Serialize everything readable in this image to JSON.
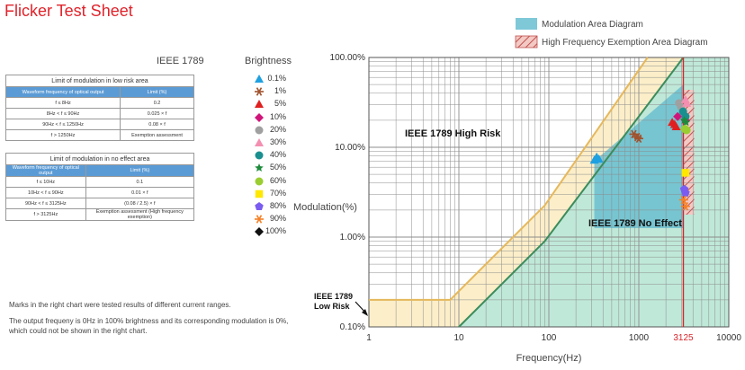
{
  "title": "Flicker Test Sheet",
  "ieee_label": "IEEE 1789",
  "table_low_risk": {
    "section": "Limit of modulation in low risk area",
    "headers": [
      "Waveform frequency of optical output",
      "Limit (%)"
    ],
    "rows": [
      [
        "f ≤ 8Hz",
        "0.2"
      ],
      [
        "8Hz < f ≤ 90Hz",
        "0.025 × f"
      ],
      [
        "90Hz < f ≤ 1250Hz",
        "0.08 × f"
      ],
      [
        "f > 1250Hz",
        "Exemption assessment"
      ]
    ]
  },
  "table_no_effect": {
    "section": "Limit of modulation in no effect area",
    "headers": [
      "Waveform frequency of optical output",
      "Limit (%)"
    ],
    "rows": [
      [
        "f ≤ 10Hz",
        "0.1"
      ],
      [
        "10Hz < f ≤ 90Hz",
        "0.01 × f"
      ],
      [
        "90Hz < f ≤ 3125Hz",
        "(0.08 / 2.5) × f"
      ],
      [
        "f > 3125Hz",
        "Exemption assessment (High frequency exemption)"
      ]
    ]
  },
  "brightness_legend": {
    "title": "Brightness",
    "items": [
      {
        "label": "0.1%",
        "color": "#1fa0e0",
        "shape": "triangle"
      },
      {
        "label": "1%",
        "color": "#a0522d",
        "shape": "asterisk"
      },
      {
        "label": "5%",
        "color": "#e02020",
        "shape": "triangle"
      },
      {
        "label": "10%",
        "color": "#d0157a",
        "shape": "diamond"
      },
      {
        "label": "20%",
        "color": "#a0a0a0",
        "shape": "circle"
      },
      {
        "label": "30%",
        "color": "#f48fb1",
        "shape": "triangle"
      },
      {
        "label": "40%",
        "color": "#1b8f8f",
        "shape": "circle"
      },
      {
        "label": "50%",
        "color": "#1e8a3c",
        "shape": "star"
      },
      {
        "label": "60%",
        "color": "#9acd32",
        "shape": "circle"
      },
      {
        "label": "70%",
        "color": "#ffe800",
        "shape": "square"
      },
      {
        "label": "80%",
        "color": "#7b5cf0",
        "shape": "pentagon"
      },
      {
        "label": "90%",
        "color": "#f58025",
        "shape": "asterisk"
      },
      {
        "label": "100%",
        "color": "#111111",
        "shape": "diamond"
      }
    ]
  },
  "notes": [
    "Marks in the right chart were tested results of different current ranges.",
    "The output frequeny is 0Hz in 100% brightness and its corresponding modulation is 0%, which could not be shown in the right chart."
  ],
  "chart_data": {
    "type": "scatter",
    "x_scale": "log",
    "y_scale": "log",
    "xlim": [
      1,
      10000
    ],
    "ylim": [
      0.1,
      100
    ],
    "xlabel": "Frequency(Hz)",
    "ylabel": "Modulation(%)",
    "x_ticks": [
      "1",
      "10",
      "100",
      "1000",
      "3125",
      "10000"
    ],
    "y_ticks": [
      "0.10%",
      "1.00%",
      "10.00%",
      "100.00%"
    ],
    "highlight_frequency": 3125,
    "legend": [
      "Modulation Area Diagram",
      "High Frequency Exemption Area Diagram"
    ],
    "legend_colors": {
      "modulation_area": "#7ec8d8",
      "exemption_area": "#d9534f"
    },
    "region_labels": [
      "IEEE 1789 High Risk",
      "IEEE 1789 No Effect",
      "IEEE 1789 Low Risk"
    ],
    "limit_curves": [
      {
        "name": "Low risk limit",
        "x": [
          1,
          8,
          90,
          1250
        ],
        "y": [
          0.2,
          0.2,
          2.25,
          100
        ]
      },
      {
        "name": "No effect limit",
        "x": [
          10,
          90,
          3125
        ],
        "y": [
          0.1,
          0.9,
          100
        ]
      }
    ],
    "modulation_area": {
      "x": [
        320,
        3125
      ],
      "y": [
        7,
        50
      ]
    },
    "series": [
      {
        "label": "0.1%",
        "points": [
          [
            320,
            7.2
          ],
          [
            340,
            7.8
          ],
          [
            360,
            7.4
          ]
        ]
      },
      {
        "label": "1%",
        "points": [
          [
            880,
            14
          ],
          [
            960,
            13
          ],
          [
            1000,
            12.5
          ]
        ]
      },
      {
        "label": "5%",
        "points": [
          [
            2350,
            19
          ],
          [
            2500,
            18
          ],
          [
            2600,
            17
          ]
        ]
      },
      {
        "label": "10%",
        "points": [
          [
            2700,
            22
          ],
          [
            3300,
            20
          ]
        ]
      },
      {
        "label": "20%",
        "points": [
          [
            2800,
            31
          ],
          [
            2950,
            28
          ]
        ]
      },
      {
        "label": "30%",
        "points": [
          [
            3300,
            34
          ],
          [
            3400,
            31
          ]
        ]
      },
      {
        "label": "40%",
        "points": [
          [
            3100,
            25
          ],
          [
            3300,
            22
          ]
        ]
      },
      {
        "label": "50%",
        "points": [
          [
            3200,
            20
          ],
          [
            3350,
            19
          ]
        ]
      },
      {
        "label": "60%",
        "points": [
          [
            3250,
            16
          ],
          [
            3400,
            15.5
          ]
        ]
      },
      {
        "label": "70%",
        "points": [
          [
            3300,
            5.2
          ]
        ]
      },
      {
        "label": "80%",
        "points": [
          [
            3200,
            3.4
          ],
          [
            3300,
            3.1
          ]
        ]
      },
      {
        "label": "90%",
        "points": [
          [
            3150,
            2.6
          ],
          [
            3300,
            2.2
          ]
        ]
      }
    ]
  }
}
